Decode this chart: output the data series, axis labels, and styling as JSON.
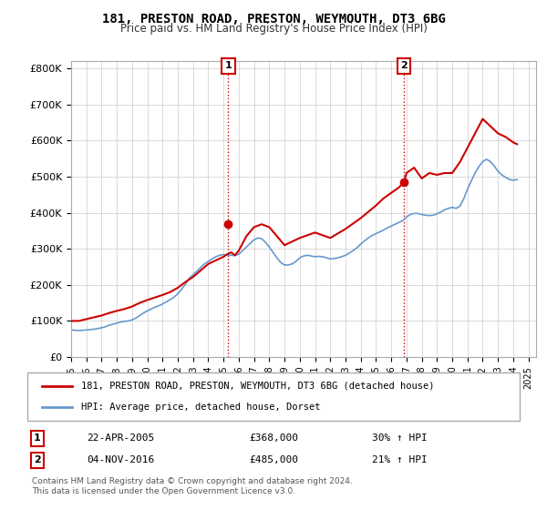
{
  "title": "181, PRESTON ROAD, PRESTON, WEYMOUTH, DT3 6BG",
  "subtitle": "Price paid vs. HM Land Registry's House Price Index (HPI)",
  "ylabel_ticks": [
    "£0",
    "£100K",
    "£200K",
    "£300K",
    "£400K",
    "£500K",
    "£600K",
    "£700K",
    "£800K"
  ],
  "ytick_values": [
    0,
    100000,
    200000,
    300000,
    400000,
    500000,
    600000,
    700000,
    800000
  ],
  "ylim": [
    0,
    820000
  ],
  "xlim_start": 1995.0,
  "xlim_end": 2025.5,
  "legend_line1": "181, PRESTON ROAD, PRESTON, WEYMOUTH, DT3 6BG (detached house)",
  "legend_line2": "HPI: Average price, detached house, Dorset",
  "marker1_label": "1",
  "marker1_date": "22-APR-2005",
  "marker1_price": "£368,000",
  "marker1_hpi": "30% ↑ HPI",
  "marker1_x": 2005.31,
  "marker1_y": 368000,
  "marker2_label": "2",
  "marker2_date": "04-NOV-2016",
  "marker2_price": "£485,000",
  "marker2_hpi": "21% ↑ HPI",
  "marker2_x": 2016.84,
  "marker2_y": 485000,
  "red_line_color": "#cc0000",
  "blue_line_color": "#6699cc",
  "footer": "Contains HM Land Registry data © Crown copyright and database right 2024.\nThis data is licensed under the Open Government Licence v3.0.",
  "hpi_data": {
    "years": [
      1995.0,
      1995.25,
      1995.5,
      1995.75,
      1996.0,
      1996.25,
      1996.5,
      1996.75,
      1997.0,
      1997.25,
      1997.5,
      1997.75,
      1998.0,
      1998.25,
      1998.5,
      1998.75,
      1999.0,
      1999.25,
      1999.5,
      1999.75,
      2000.0,
      2000.25,
      2000.5,
      2000.75,
      2001.0,
      2001.25,
      2001.5,
      2001.75,
      2002.0,
      2002.25,
      2002.5,
      2002.75,
      2003.0,
      2003.25,
      2003.5,
      2003.75,
      2004.0,
      2004.25,
      2004.5,
      2004.75,
      2005.0,
      2005.25,
      2005.5,
      2005.75,
      2006.0,
      2006.25,
      2006.5,
      2006.75,
      2007.0,
      2007.25,
      2007.5,
      2007.75,
      2008.0,
      2008.25,
      2008.5,
      2008.75,
      2009.0,
      2009.25,
      2009.5,
      2009.75,
      2010.0,
      2010.25,
      2010.5,
      2010.75,
      2011.0,
      2011.25,
      2011.5,
      2011.75,
      2012.0,
      2012.25,
      2012.5,
      2012.75,
      2013.0,
      2013.25,
      2013.5,
      2013.75,
      2014.0,
      2014.25,
      2014.5,
      2014.75,
      2015.0,
      2015.25,
      2015.5,
      2015.75,
      2016.0,
      2016.25,
      2016.5,
      2016.75,
      2017.0,
      2017.25,
      2017.5,
      2017.75,
      2018.0,
      2018.25,
      2018.5,
      2018.75,
      2019.0,
      2019.25,
      2019.5,
      2019.75,
      2020.0,
      2020.25,
      2020.5,
      2020.75,
      2021.0,
      2021.25,
      2021.5,
      2021.75,
      2022.0,
      2022.25,
      2022.5,
      2022.75,
      2023.0,
      2023.25,
      2023.5,
      2023.75,
      2024.0,
      2024.25
    ],
    "values": [
      75000,
      74000,
      73500,
      74000,
      75000,
      76000,
      77000,
      79000,
      81000,
      84000,
      88000,
      91000,
      94000,
      97000,
      99000,
      100000,
      103000,
      108000,
      115000,
      122000,
      128000,
      133000,
      138000,
      142000,
      147000,
      153000,
      159000,
      166000,
      175000,
      188000,
      202000,
      218000,
      228000,
      238000,
      248000,
      258000,
      265000,
      272000,
      278000,
      282000,
      284000,
      283000,
      282000,
      281000,
      285000,
      295000,
      305000,
      315000,
      325000,
      330000,
      328000,
      318000,
      305000,
      290000,
      275000,
      262000,
      255000,
      255000,
      258000,
      265000,
      275000,
      280000,
      282000,
      280000,
      278000,
      279000,
      278000,
      275000,
      272000,
      273000,
      275000,
      278000,
      282000,
      288000,
      295000,
      303000,
      313000,
      322000,
      330000,
      337000,
      342000,
      347000,
      352000,
      358000,
      363000,
      368000,
      373000,
      378000,
      388000,
      395000,
      398000,
      398000,
      395000,
      393000,
      392000,
      393000,
      397000,
      402000,
      408000,
      412000,
      415000,
      412000,
      418000,
      438000,
      465000,
      488000,
      510000,
      528000,
      542000,
      548000,
      542000,
      530000,
      515000,
      505000,
      498000,
      492000,
      490000,
      492000
    ]
  },
  "property_data": {
    "years": [
      1995.0,
      1995.5,
      1996.0,
      1996.5,
      1997.0,
      1997.5,
      1998.0,
      1998.5,
      1999.0,
      1999.5,
      2000.0,
      2000.5,
      2001.0,
      2001.5,
      2002.0,
      2002.5,
      2003.0,
      2003.5,
      2004.0,
      2004.5,
      2005.0,
      2005.25,
      2005.5,
      2005.75,
      2006.0,
      2006.5,
      2007.0,
      2007.5,
      2008.0,
      2009.0,
      2010.0,
      2011.0,
      2012.0,
      2013.0,
      2014.0,
      2015.0,
      2015.5,
      2016.0,
      2016.5,
      2016.84,
      2017.0,
      2017.5,
      2018.0,
      2018.5,
      2019.0,
      2019.5,
      2020.0,
      2020.5,
      2021.0,
      2021.5,
      2022.0,
      2022.5,
      2023.0,
      2023.5,
      2024.0,
      2024.25
    ],
    "values": [
      100000,
      100000,
      105000,
      110000,
      115000,
      122000,
      128000,
      133000,
      140000,
      150000,
      158000,
      165000,
      172000,
      180000,
      192000,
      208000,
      222000,
      240000,
      258000,
      268000,
      278000,
      285000,
      290000,
      282000,
      295000,
      335000,
      360000,
      368000,
      360000,
      310000,
      330000,
      345000,
      330000,
      355000,
      385000,
      420000,
      440000,
      455000,
      470000,
      485000,
      510000,
      525000,
      495000,
      510000,
      505000,
      510000,
      510000,
      540000,
      580000,
      620000,
      660000,
      640000,
      620000,
      610000,
      595000,
      590000
    ]
  }
}
